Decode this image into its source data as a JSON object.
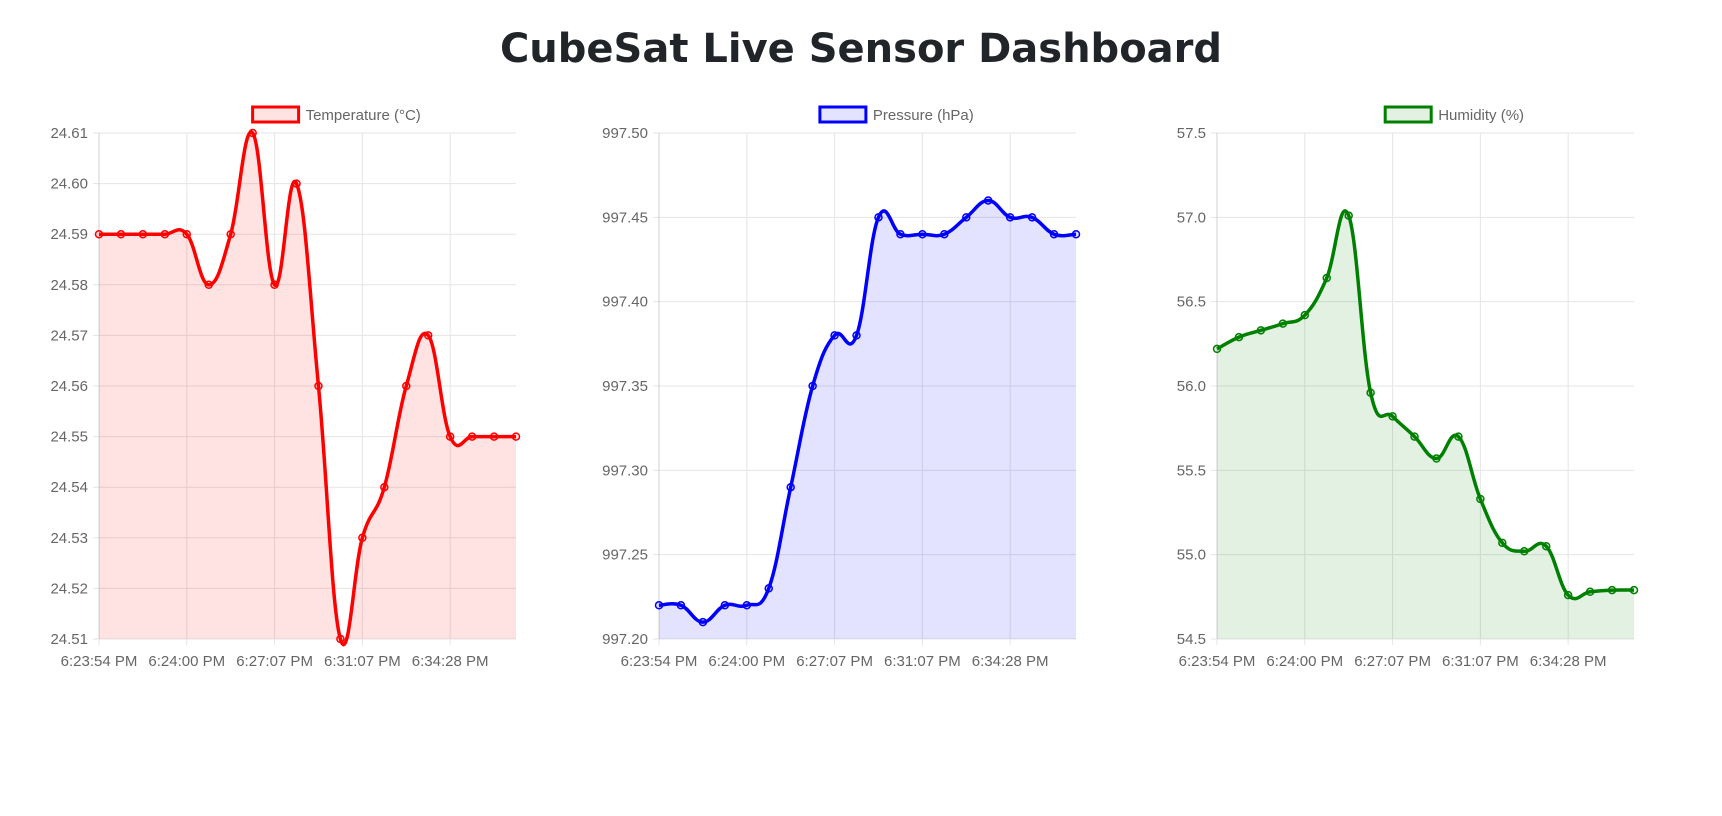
{
  "title": "CubeSat Live Sensor Dashboard",
  "chart_data": [
    {
      "type": "line",
      "legend": "Temperature (°C)",
      "color": "#ff0000",
      "fill": "rgba(255,0,0,0.11)",
      "legend_fill": "rgba(255,0,0,0.11)",
      "ylim": [
        24.51,
        24.61
      ],
      "yticks": [
        "24.61",
        "24.60",
        "24.59",
        "24.58",
        "24.57",
        "24.56",
        "24.55",
        "24.54",
        "24.53",
        "24.52",
        "24.51"
      ],
      "xticks": [
        "6:23:54 PM",
        "6:24:00 PM",
        "6:27:07 PM",
        "6:31:07 PM",
        "6:34:28 PM"
      ],
      "values": [
        24.59,
        24.59,
        24.59,
        24.59,
        24.59,
        24.58,
        24.59,
        24.61,
        24.58,
        24.6,
        24.56,
        24.51,
        24.53,
        24.54,
        24.56,
        24.57,
        24.55,
        24.55,
        24.55,
        24.55
      ]
    },
    {
      "type": "line",
      "legend": "Pressure (hPa)",
      "color": "#0000ff",
      "fill": "rgba(0,0,255,0.11)",
      "legend_fill": "rgba(0,0,255,0.11)",
      "ylim": [
        997.2,
        997.5
      ],
      "yticks": [
        "997.50",
        "997.45",
        "997.40",
        "997.35",
        "997.30",
        "997.25",
        "997.20"
      ],
      "xticks": [
        "6:23:54 PM",
        "6:24:00 PM",
        "6:27:07 PM",
        "6:31:07 PM",
        "6:34:28 PM"
      ],
      "values": [
        997.22,
        997.22,
        997.21,
        997.22,
        997.22,
        997.23,
        997.29,
        997.35,
        997.38,
        997.38,
        997.45,
        997.44,
        997.44,
        997.44,
        997.45,
        997.46,
        997.45,
        997.45,
        997.44,
        997.44
      ]
    },
    {
      "type": "line",
      "legend": "Humidity (%)",
      "color": "#008000",
      "fill": "rgba(0,128,0,0.11)",
      "legend_fill": "rgba(0,128,0,0.11)",
      "ylim": [
        54.5,
        57.5
      ],
      "yticks": [
        "57.5",
        "57.0",
        "56.5",
        "56.0",
        "55.5",
        "55.0",
        "54.5"
      ],
      "xticks": [
        "6:23:54 PM",
        "6:24:00 PM",
        "6:27:07 PM",
        "6:31:07 PM",
        "6:34:28 PM"
      ],
      "values": [
        56.22,
        56.29,
        56.33,
        56.37,
        56.42,
        56.64,
        57.01,
        55.96,
        55.82,
        55.7,
        55.57,
        55.7,
        55.33,
        55.07,
        55.02,
        55.05,
        54.76,
        54.78,
        54.79,
        54.79
      ]
    }
  ]
}
